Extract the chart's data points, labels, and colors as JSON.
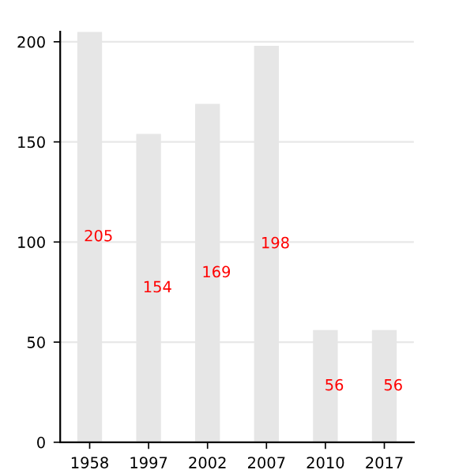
{
  "chart_data": {
    "type": "bar",
    "categories": [
      "1958",
      "1997",
      "2002",
      "2007",
      "2010",
      "2017"
    ],
    "values": [
      205,
      154,
      169,
      198,
      56,
      56
    ],
    "color": "#e6e6e6",
    "ylim": [
      0,
      205
    ],
    "yticks": [
      0,
      50,
      100,
      150,
      200
    ],
    "grid": "y",
    "data_labels": true
  }
}
